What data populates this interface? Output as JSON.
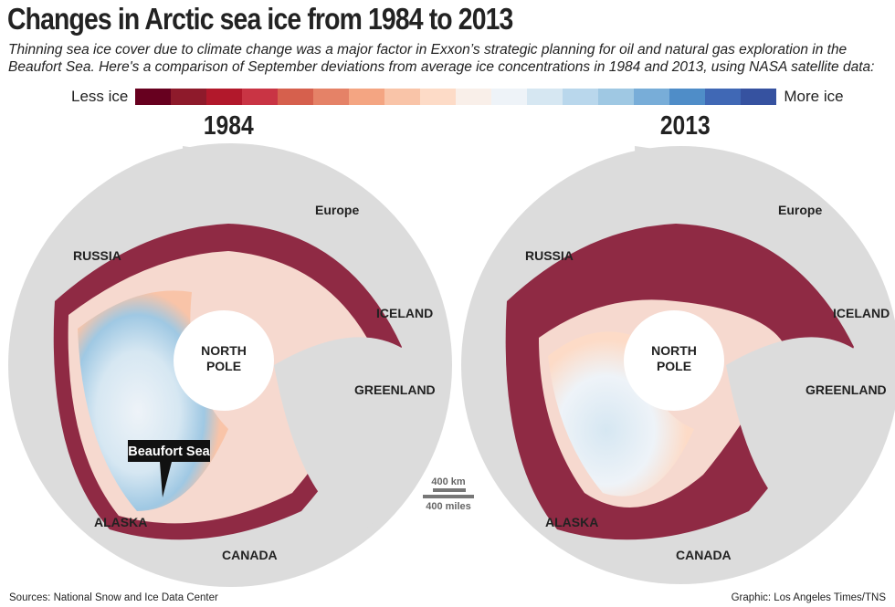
{
  "title": "Changes in Arctic sea ice from 1984 to 2013",
  "subtitle": "Thinning sea ice cover due to climate change was a major factor in Exxon’s strategic planning for oil and natural gas exploration in the Beaufort Sea. Here's a comparison of September deviations from average ice concentrations in 1984 and 2013, using NASA satellite data:",
  "legend": {
    "less": "Less ice",
    "more": "More ice",
    "colors": [
      "#67001f",
      "#8e1a2b",
      "#b2182b",
      "#c93444",
      "#d6604d",
      "#e58267",
      "#f4a582",
      "#f9c4a8",
      "#fddbc7",
      "#f9efe9",
      "#eef3f8",
      "#d6e7f2",
      "#b9d7ec",
      "#9fc8e3",
      "#78add8",
      "#4f8dc8",
      "#4068b5",
      "#3652a0"
    ]
  },
  "maps": [
    {
      "year": "1984",
      "labels": {
        "russia": "RUSSIA",
        "europe": "Europe",
        "iceland": "ICELAND",
        "greenland": "GREENLAND",
        "pole": "NORTH POLE",
        "alaska": "ALASKA",
        "canada": "CANADA"
      },
      "callout": "Beaufort Sea"
    },
    {
      "year": "2013",
      "labels": {
        "russia": "RUSSIA",
        "europe": "Europe",
        "iceland": "ICELAND",
        "greenland": "GREENLAND",
        "pole": "NORTH POLE",
        "alaska": "ALASKA",
        "canada": "CANADA"
      }
    }
  ],
  "scale": {
    "km": "400 km",
    "miles": "400 miles"
  },
  "sources": "Sources: National Snow and Ice Data Center",
  "credit": "Graphic: Los Angeles Times/TNS"
}
